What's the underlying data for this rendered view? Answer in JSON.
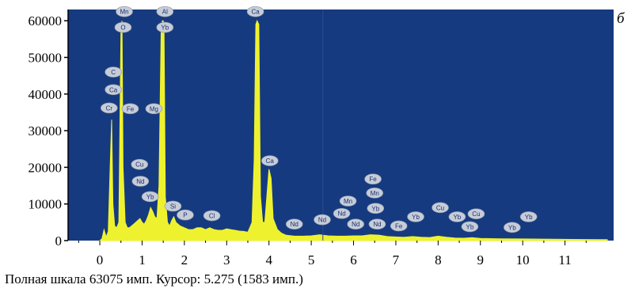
{
  "chart_data": {
    "type": "area",
    "title": "",
    "xlabel": "",
    "ylabel": "",
    "xlim": [
      -0.75,
      12.15
    ],
    "ylim": [
      0,
      63075
    ],
    "y_ticks": [
      "0",
      "10000",
      "20000",
      "30000",
      "40000",
      "50000",
      "60000"
    ],
    "x_ticks": [
      "0",
      "1",
      "2",
      "3",
      "4",
      "5",
      "6",
      "7",
      "8",
      "9",
      "10",
      "11"
    ],
    "cursor_x": 5.275,
    "colors": {
      "plot_bg": "#163a80",
      "spectrum": "#eef22e",
      "peak_label_fill": "#c6cdd8",
      "peak_label_text": "#1b2f70"
    },
    "series": [
      {
        "x": [
          0.0,
          0.05,
          0.1,
          0.15,
          0.2,
          0.25,
          0.28,
          0.31,
          0.35,
          0.4,
          0.45,
          0.5,
          0.525,
          0.55,
          0.6,
          0.65,
          0.7,
          0.75,
          0.8,
          0.85,
          0.9,
          0.95,
          1.0,
          1.05,
          1.1,
          1.15,
          1.2,
          1.25,
          1.3,
          1.35,
          1.4,
          1.45,
          1.48,
          1.5,
          1.52,
          1.55,
          1.6,
          1.65,
          1.7,
          1.75,
          1.8,
          1.85,
          1.9,
          2.0,
          2.1,
          2.2,
          2.3,
          2.4,
          2.5,
          2.6,
          2.7,
          2.8,
          2.9,
          3.0,
          3.1,
          3.2,
          3.3,
          3.4,
          3.5,
          3.6,
          3.65,
          3.69,
          3.72,
          3.76,
          3.8,
          3.85,
          3.9,
          3.95,
          4.0,
          4.05,
          4.1,
          4.2,
          4.3,
          4.4,
          4.6,
          4.8,
          5.0,
          5.2,
          5.4,
          5.6,
          5.8,
          6.0,
          6.2,
          6.4,
          6.6,
          6.8,
          7.0,
          7.2,
          7.4,
          7.6,
          7.8,
          8.0,
          8.2,
          8.4,
          8.6,
          8.8,
          9.0,
          9.5,
          10.0,
          10.5,
          11.0,
          11.5,
          12.0
        ],
        "y": [
          0,
          500,
          3000,
          1000,
          2500,
          22000,
          33000,
          10000,
          4000,
          3500,
          5000,
          58000,
          60000,
          20000,
          5000,
          3500,
          3500,
          4000,
          4500,
          5000,
          5500,
          6000,
          5000,
          4500,
          5500,
          7000,
          9000,
          8000,
          6500,
          6000,
          15000,
          57000,
          60000,
          60000,
          57000,
          12000,
          5000,
          4000,
          5500,
          6500,
          5000,
          4500,
          4000,
          3500,
          3000,
          3000,
          3500,
          3500,
          3000,
          3500,
          3000,
          2800,
          2800,
          3200,
          3000,
          2800,
          2600,
          2500,
          2300,
          5000,
          22000,
          59000,
          60000,
          59000,
          12000,
          5000,
          5000,
          12000,
          19500,
          17000,
          6000,
          3000,
          2000,
          1500,
          1200,
          1200,
          1300,
          1600,
          1300,
          1200,
          1200,
          1300,
          1300,
          1600,
          1500,
          1100,
          1000,
          900,
          1100,
          900,
          850,
          1200,
          900,
          700,
          650,
          800,
          600,
          500,
          450,
          400,
          350,
          300,
          250
        ]
      }
    ],
    "peak_labels": [
      {
        "text": "Mn",
        "x": 0.58,
        "y": 62500
      },
      {
        "text": "O",
        "x": 0.55,
        "y": 58200
      },
      {
        "text": "C",
        "x": 0.32,
        "y": 46000
      },
      {
        "text": "Ca",
        "x": 0.32,
        "y": 41200
      },
      {
        "text": "Cr",
        "x": 0.22,
        "y": 36200
      },
      {
        "text": "Fe",
        "x": 0.72,
        "y": 36000
      },
      {
        "text": "Mg",
        "x": 1.28,
        "y": 36000
      },
      {
        "text": "Al",
        "x": 1.54,
        "y": 62500
      },
      {
        "text": "Yb",
        "x": 1.54,
        "y": 58200
      },
      {
        "text": "Cu",
        "x": 0.94,
        "y": 20800
      },
      {
        "text": "Nd",
        "x": 0.96,
        "y": 16200
      },
      {
        "text": "Yb",
        "x": 1.19,
        "y": 12000
      },
      {
        "text": "Si",
        "x": 1.73,
        "y": 9400
      },
      {
        "text": "P",
        "x": 2.02,
        "y": 7000
      },
      {
        "text": "Cl",
        "x": 2.65,
        "y": 6800
      },
      {
        "text": "Ca",
        "x": 3.68,
        "y": 62500
      },
      {
        "text": "Ca",
        "x": 4.02,
        "y": 21800
      },
      {
        "text": "Nd",
        "x": 4.6,
        "y": 4500
      },
      {
        "text": "Nd",
        "x": 5.26,
        "y": 5700
      },
      {
        "text": "Mn",
        "x": 5.87,
        "y": 10800
      },
      {
        "text": "Nd",
        "x": 5.72,
        "y": 7400
      },
      {
        "text": "Nd",
        "x": 6.05,
        "y": 4500
      },
      {
        "text": "Fe",
        "x": 6.46,
        "y": 16800
      },
      {
        "text": "Mn",
        "x": 6.5,
        "y": 13000
      },
      {
        "text": "Yb",
        "x": 6.52,
        "y": 8800
      },
      {
        "text": "Nd",
        "x": 6.56,
        "y": 4500
      },
      {
        "text": "Fe",
        "x": 7.07,
        "y": 4000
      },
      {
        "text": "Yb",
        "x": 7.47,
        "y": 6500
      },
      {
        "text": "Cu",
        "x": 8.05,
        "y": 9000
      },
      {
        "text": "Yb",
        "x": 8.45,
        "y": 6500
      },
      {
        "text": "Yb",
        "x": 8.75,
        "y": 3800
      },
      {
        "text": "Cu",
        "x": 8.9,
        "y": 7300
      },
      {
        "text": "Yb",
        "x": 9.75,
        "y": 3600
      },
      {
        "text": "Yb",
        "x": 10.14,
        "y": 6500
      }
    ]
  },
  "footer_text": "Полная шкала 63075 имп. Курсор: 5.275 (1583 имп.)",
  "panel_letter": "б"
}
